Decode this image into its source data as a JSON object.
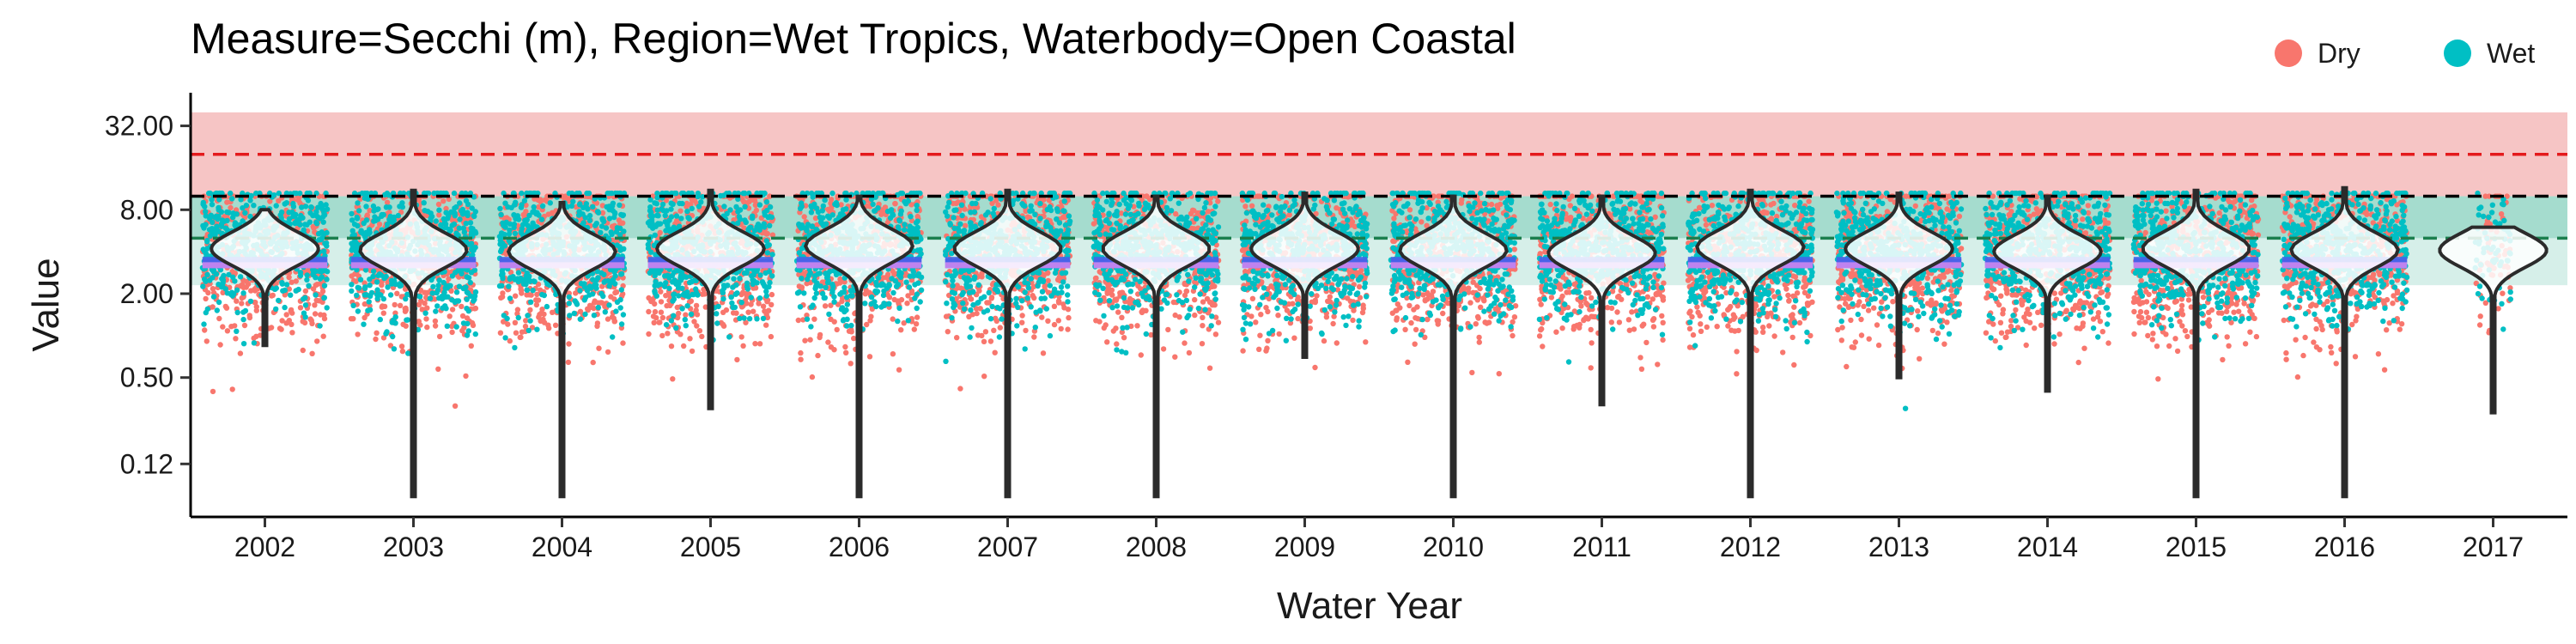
{
  "chart_data": {
    "type": "scatter",
    "title": "Measure=Secchi (m), Region=Wet Tropics, Waterbody=Open Coastal",
    "xlabel": "Water Year",
    "ylabel": "Value",
    "y_scale": "log2",
    "ylim": [
      0.05,
      48
    ],
    "y_ticks": [
      0.12,
      0.5,
      2.0,
      8.0,
      32.0
    ],
    "y_tick_labels": [
      "0.12",
      "0.50",
      "2.00",
      "8.00",
      "32.00"
    ],
    "x_categories": [
      "2002",
      "2003",
      "2004",
      "2005",
      "2006",
      "2007",
      "2008",
      "2009",
      "2010",
      "2011",
      "2012",
      "2013",
      "2014",
      "2015",
      "2016",
      "2017"
    ],
    "grid": false,
    "legend": {
      "position": "top-right",
      "entries": [
        {
          "label": "Dry",
          "color": "#F8766D"
        },
        {
          "label": "Wet",
          "color": "#00BFC4"
        }
      ]
    },
    "threshold_bands": [
      {
        "from": 10.0,
        "to": 40.0,
        "color": "#F4B6B6"
      },
      {
        "from": 5.0,
        "to": 10.0,
        "color": "#8FD3C2"
      },
      {
        "from": 2.3,
        "to": 5.0,
        "color": "#CCEBE3"
      }
    ],
    "reference_lines": [
      {
        "value": 20.0,
        "color": "#E41A1C",
        "style": "dashed"
      },
      {
        "value": 10.0,
        "color": "#000000",
        "style": "dashed"
      },
      {
        "value": 5.0,
        "color": "#1B7F4E",
        "style": "dashed"
      }
    ],
    "violins": [
      {
        "year": "2002",
        "median": 4.2,
        "min": 0.85,
        "max": 8.0
      },
      {
        "year": "2003",
        "median": 4.1,
        "min": 0.07,
        "max": 11.0
      },
      {
        "year": "2004",
        "median": 4.0,
        "min": 0.07,
        "max": 9.0
      },
      {
        "year": "2005",
        "median": 4.2,
        "min": 0.3,
        "max": 11.0
      },
      {
        "year": "2006",
        "median": 4.4,
        "min": 0.07,
        "max": 10.0
      },
      {
        "year": "2007",
        "median": 4.2,
        "min": 0.07,
        "max": 11.0
      },
      {
        "year": "2008",
        "median": 4.2,
        "min": 0.07,
        "max": 10.0
      },
      {
        "year": "2009",
        "median": 4.2,
        "min": 0.7,
        "max": 10.5
      },
      {
        "year": "2010",
        "median": 4.1,
        "min": 0.07,
        "max": 10.0
      },
      {
        "year": "2011",
        "median": 3.9,
        "min": 0.32,
        "max": 10.0
      },
      {
        "year": "2012",
        "median": 4.3,
        "min": 0.07,
        "max": 11.0
      },
      {
        "year": "2013",
        "median": 4.2,
        "min": 0.5,
        "max": 10.5
      },
      {
        "year": "2014",
        "median": 4.0,
        "min": 0.4,
        "max": 10.0
      },
      {
        "year": "2015",
        "median": 4.2,
        "min": 0.07,
        "max": 11.0
      },
      {
        "year": "2016",
        "median": 4.1,
        "min": 0.07,
        "max": 11.5
      },
      {
        "year": "2017",
        "median": 4.1,
        "min": 0.28,
        "max": 6.0
      }
    ],
    "trend_lines": [
      {
        "name": "",
        "color": "#7B2FF7",
        "value": 3.3
      },
      {
        "name": "",
        "color": "#4466E8",
        "value": 3.5
      },
      {
        "name": "",
        "color": "#C78BEE",
        "value": 3.2
      }
    ],
    "series": [
      {
        "name": "Dry",
        "color": "#F8766D",
        "median": 3.6,
        "spread": 0.9,
        "min": 0.3,
        "max": 10.0
      },
      {
        "name": "Wet",
        "color": "#00BFC4",
        "median": 4.2,
        "spread": 0.8,
        "min": 0.25,
        "max": 10.5
      }
    ]
  }
}
